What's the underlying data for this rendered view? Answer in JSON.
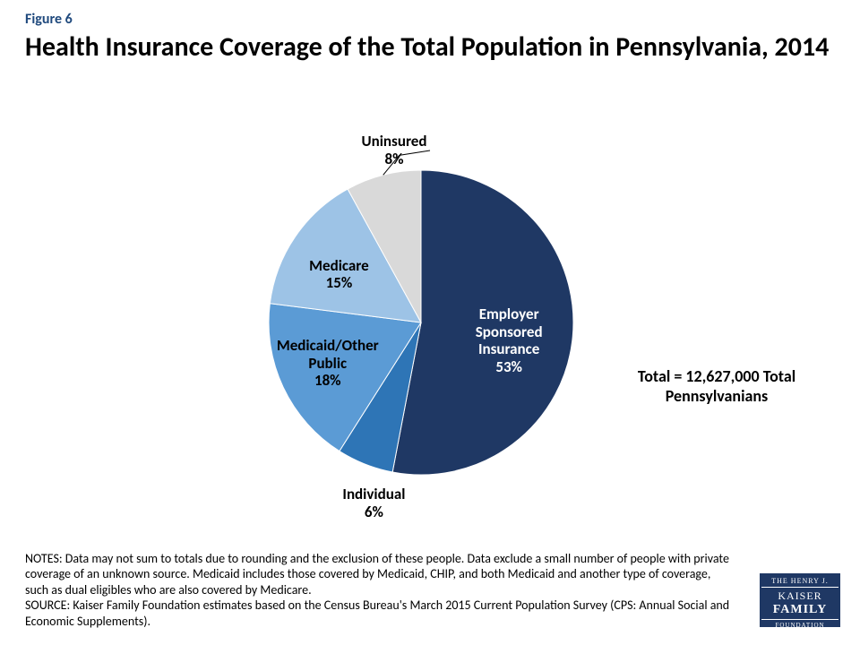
{
  "figure_number": "Figure 6",
  "title": "Health Insurance Coverage of the Total Population in Pennsylvania, 2014",
  "title_fontsize": 30,
  "figure_number_fontsize": 16,
  "chart": {
    "type": "pie",
    "start_angle_deg": -90,
    "slices": [
      {
        "label": "Employer Sponsored Insurance",
        "value": 53,
        "pct_text": "53%",
        "color": "#1f3864",
        "label_color": "#ffffff",
        "label_inside": true
      },
      {
        "label": "Individual",
        "value": 6,
        "pct_text": "6%",
        "color": "#2e75b6",
        "label_color": "#000000",
        "label_inside": false
      },
      {
        "label": "Medicaid/Other Public",
        "value": 18,
        "pct_text": "18%",
        "color": "#5b9bd5",
        "label_color": "#000000",
        "label_inside": true
      },
      {
        "label": "Medicare",
        "value": 15,
        "pct_text": "15%",
        "color": "#9dc3e6",
        "label_color": "#000000",
        "label_inside": true
      },
      {
        "label": "Uninsured",
        "value": 8,
        "pct_text": "8%",
        "color": "#d9d9d9",
        "label_color": "#000000",
        "label_inside": false
      }
    ],
    "label_fontsize": 17,
    "radius": 170
  },
  "total_label_line1": "Total = 12,627,000 Total",
  "total_label_line2": "Pennsylvanians",
  "total_label_fontsize": 18,
  "notes": "NOTES: Data may not sum to totals due to rounding and the exclusion of these people. Data exclude a small number of people with private coverage of an unknown source. Medicaid includes those covered by Medicaid, CHIP, and both Medicaid and another type of coverage, such as dual eligibles who are also covered by Medicare.",
  "source": "SOURCE: Kaiser Family Foundation estimates based on the Census Bureau's March 2015 Current Population Survey (CPS: Annual Social and Economic Supplements).",
  "notes_fontsize": 14,
  "logo": {
    "top": "THE HENRY J.",
    "mid1": "KAISER",
    "mid2": "FAMILY",
    "bot": "FOUNDATION",
    "bg_color": "#1f3864"
  },
  "background_color": "#ffffff"
}
